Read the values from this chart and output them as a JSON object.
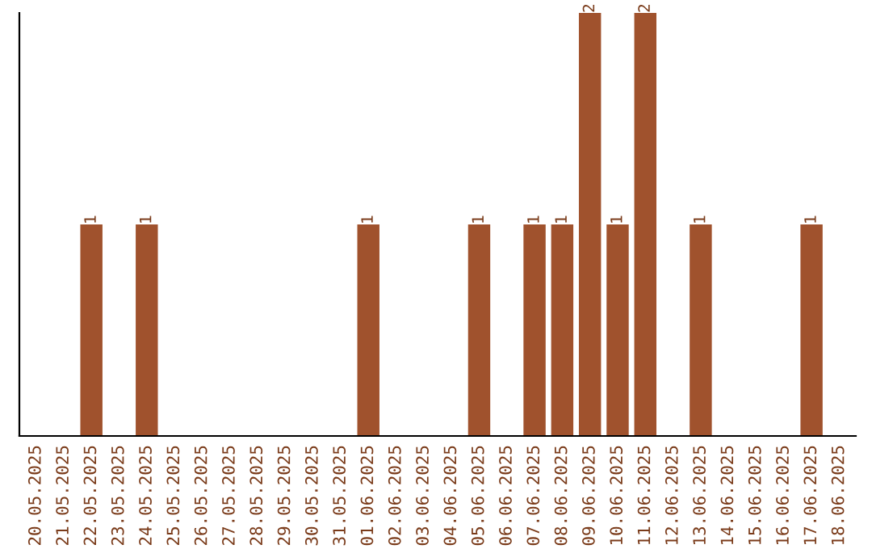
{
  "chart_data": {
    "type": "bar",
    "categories": [
      "20.05.2025",
      "21.05.2025",
      "22.05.2025",
      "23.05.2025",
      "24.05.2025",
      "25.05.2025",
      "26.05.2025",
      "27.05.2025",
      "28.05.2025",
      "29.05.2025",
      "30.05.2025",
      "31.05.2025",
      "01.06.2025",
      "02.06.2025",
      "03.06.2025",
      "04.06.2025",
      "05.06.2025",
      "06.06.2025",
      "07.06.2025",
      "08.06.2025",
      "09.06.2025",
      "10.06.2025",
      "11.06.2025",
      "12.06.2025",
      "13.06.2025",
      "14.06.2025",
      "15.06.2025",
      "16.06.2025",
      "17.06.2025",
      "18.06.2025"
    ],
    "values": [
      0,
      0,
      1,
      0,
      1,
      0,
      0,
      0,
      0,
      0,
      0,
      0,
      1,
      0,
      0,
      0,
      1,
      0,
      1,
      1,
      2,
      1,
      2,
      0,
      1,
      0,
      0,
      0,
      1,
      0
    ],
    "value_labels": [
      null,
      null,
      "1",
      null,
      "1",
      null,
      null,
      null,
      null,
      null,
      null,
      null,
      "1",
      null,
      null,
      null,
      "1",
      null,
      "1",
      "1",
      "2",
      "1",
      "2",
      null,
      "1",
      null,
      null,
      null,
      "1",
      null
    ],
    "color": "#a0522d",
    "ylim": [
      0,
      2
    ],
    "tick_labels": "x",
    "grid": false,
    "legend": false
  }
}
